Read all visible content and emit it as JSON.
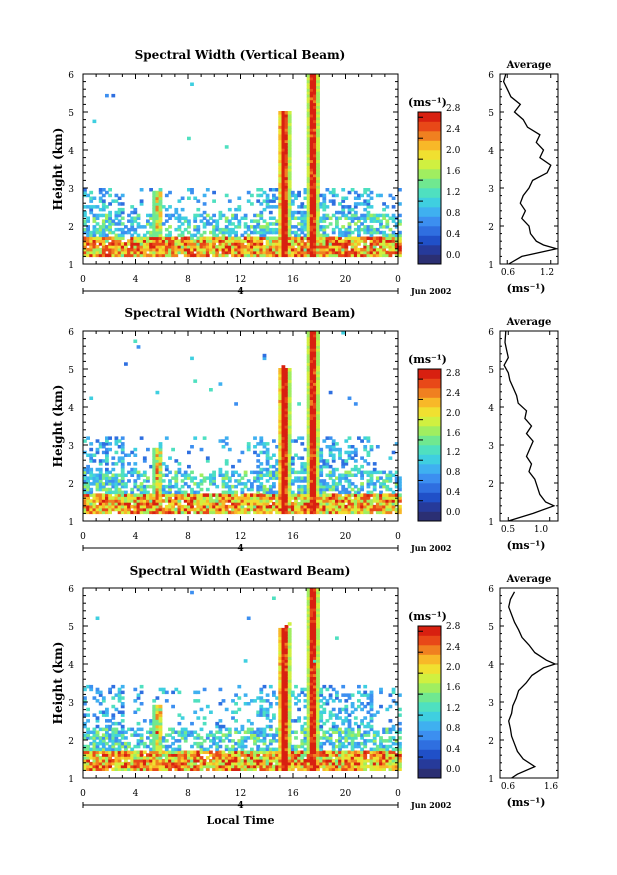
{
  "figure": {
    "xlabel": "Local Time",
    "date_label": "Jun 2002",
    "day_label": "4"
  },
  "colormap": [
    "#2b2f73",
    "#263a9a",
    "#2050c8",
    "#2f6fe0",
    "#3c8ff0",
    "#3fb0f0",
    "#3fcfe0",
    "#4fe0c0",
    "#70e890",
    "#a0ee60",
    "#d0f040",
    "#f0e030",
    "#f8b828",
    "#f08020",
    "#e84818",
    "#d82010"
  ],
  "chart_data": [
    {
      "type": "heatmap",
      "title": "Spectral Width (Vertical Beam)",
      "xlabel": "",
      "ylabel": "Height (km)",
      "xlim": [
        0,
        24
      ],
      "ylim": [
        1,
        6
      ],
      "xticks": [
        "0",
        "4",
        "8",
        "12",
        "16",
        "20",
        "0"
      ],
      "yticks": [
        "1",
        "2",
        "3",
        "4",
        "5",
        "6"
      ],
      "colorbar": {
        "unit": "(ms⁻¹)",
        "range": [
          0,
          2.9
        ],
        "ticks": [
          "0.0",
          "0.4",
          "0.8",
          "1.2",
          "1.6",
          "2.0",
          "2.4",
          "2.8"
        ]
      },
      "profile": {
        "title": "Average",
        "xlabel": "(ms⁻¹)",
        "xlim": [
          0.5,
          1.3
        ],
        "xticks": [
          "0.6",
          "1.2"
        ],
        "yticks": [
          "1",
          "2",
          "3",
          "4",
          "5",
          "6"
        ],
        "heights": [
          1.0,
          1.2,
          1.4,
          1.5,
          1.6,
          1.8,
          2.0,
          2.2,
          2.4,
          2.6,
          2.8,
          3.0,
          3.2,
          3.4,
          3.6,
          3.8,
          4.0,
          4.2,
          4.4,
          4.6,
          4.8,
          5.0,
          5.2,
          5.4,
          5.6,
          5.8,
          6.0
        ],
        "values": [
          0.62,
          0.8,
          1.28,
          1.1,
          1.0,
          0.92,
          0.9,
          0.8,
          0.85,
          0.78,
          0.82,
          0.9,
          0.95,
          1.15,
          1.2,
          1.05,
          1.1,
          1.0,
          1.05,
          0.88,
          0.82,
          0.7,
          0.78,
          0.65,
          0.6,
          0.55,
          0.58
        ]
      }
    },
    {
      "type": "heatmap",
      "title": "Spectral Width (Northward Beam)",
      "xlabel": "",
      "ylabel": "Height (km)",
      "xlim": [
        0,
        24
      ],
      "ylim": [
        1,
        6
      ],
      "xticks": [
        "0",
        "4",
        "8",
        "12",
        "16",
        "20",
        "0"
      ],
      "yticks": [
        "1",
        "2",
        "3",
        "4",
        "5",
        "6"
      ],
      "colorbar": {
        "unit": "(ms⁻¹)",
        "range": [
          0,
          3.0
        ],
        "ticks": [
          "0.0",
          "0.4",
          "0.8",
          "1.2",
          "1.6",
          "2.0",
          "2.4",
          "2.8"
        ]
      },
      "profile": {
        "title": "Average",
        "xlabel": "(ms⁻¹)",
        "xlim": [
          0.4,
          1.1
        ],
        "xticks": [
          "0.5",
          "1.0"
        ],
        "yticks": [
          "1",
          "2",
          "3",
          "4",
          "5",
          "6"
        ],
        "heights": [
          1.0,
          1.2,
          1.4,
          1.5,
          1.7,
          1.9,
          2.1,
          2.3,
          2.5,
          2.7,
          2.9,
          3.1,
          3.3,
          3.5,
          3.7,
          3.9,
          4.1,
          4.3,
          4.5,
          4.7,
          4.9,
          5.1,
          5.3,
          5.5,
          5.7,
          6.0
        ],
        "values": [
          0.5,
          0.8,
          1.05,
          0.95,
          0.88,
          0.85,
          0.82,
          0.75,
          0.78,
          0.72,
          0.76,
          0.8,
          0.72,
          0.78,
          0.7,
          0.72,
          0.62,
          0.6,
          0.56,
          0.52,
          0.5,
          0.45,
          0.5,
          0.48,
          0.46,
          0.47
        ]
      }
    },
    {
      "type": "heatmap",
      "title": "Spectral Width (Eastward Beam)",
      "xlabel": "Local Time",
      "ylabel": "Height (km)",
      "xlim": [
        0,
        24
      ],
      "ylim": [
        1,
        6
      ],
      "xticks": [
        "0",
        "4",
        "8",
        "12",
        "16",
        "20",
        "0"
      ],
      "yticks": [
        "1",
        "2",
        "3",
        "4",
        "5",
        "6"
      ],
      "colorbar": {
        "unit": "(ms⁻¹)",
        "range": [
          0,
          2.9
        ],
        "ticks": [
          "0.0",
          "0.4",
          "0.8",
          "1.2",
          "1.6",
          "2.0",
          "2.4",
          "2.8"
        ]
      },
      "profile": {
        "title": "Average",
        "xlabel": "(ms⁻¹)",
        "xlim": [
          0.6,
          1.6
        ],
        "xticks": [
          "0.6",
          "1.6"
        ],
        "yticks": [
          "1",
          "2",
          "3",
          "4",
          "5",
          "6"
        ],
        "heights": [
          1.0,
          1.1,
          1.3,
          1.5,
          1.7,
          1.9,
          2.1,
          2.3,
          2.5,
          2.7,
          2.9,
          3.1,
          3.3,
          3.5,
          3.7,
          3.9,
          4.0,
          4.1,
          4.3,
          4.5,
          4.7,
          4.9,
          5.1,
          5.3,
          5.5,
          5.7,
          5.9
        ],
        "values": [
          0.8,
          0.9,
          1.2,
          1.0,
          0.9,
          0.85,
          0.8,
          0.78,
          0.75,
          0.8,
          0.82,
          0.88,
          0.92,
          1.05,
          1.15,
          1.35,
          1.55,
          1.4,
          1.2,
          1.1,
          0.98,
          0.92,
          0.85,
          0.8,
          0.75,
          0.78,
          0.85
        ]
      }
    }
  ]
}
